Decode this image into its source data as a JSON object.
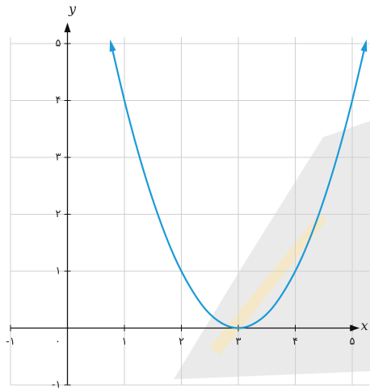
{
  "chart_data": {
    "type": "line",
    "x_label": "x",
    "y_label": "y",
    "x": [
      0.76,
      1.04,
      1.32,
      1.6,
      1.88,
      2.16,
      2.44,
      2.72,
      3.0,
      3.28,
      3.56,
      3.84,
      4.12,
      4.4,
      4.68,
      4.96,
      5.24
    ],
    "series": [
      {
        "color": "#1c9ad6",
        "values": [
          5.02,
          3.84,
          2.82,
          1.96,
          1.25,
          0.71,
          0.31,
          0.08,
          0,
          0.08,
          0.31,
          0.71,
          1.25,
          1.96,
          2.82,
          3.84,
          5.02
        ]
      }
    ],
    "xlim": [
      -1.0,
      5.3
    ],
    "ylim": [
      -1.0,
      5.4
    ],
    "xticks": [
      {
        "value": -1,
        "label": "-۱"
      },
      {
        "value": 0,
        "label": "۰"
      },
      {
        "value": 1,
        "label": "۱"
      },
      {
        "value": 2,
        "label": "۲"
      },
      {
        "value": 3,
        "label": "۳"
      },
      {
        "value": 4,
        "label": "۴"
      },
      {
        "value": 5,
        "label": "۵"
      }
    ],
    "yticks": [
      {
        "value": -1,
        "label": "-۱"
      },
      {
        "value": 1,
        "label": "۱"
      },
      {
        "value": 2,
        "label": "۲"
      },
      {
        "value": 3,
        "label": "۳"
      },
      {
        "value": 4,
        "label": "۴"
      },
      {
        "value": 5,
        "label": "۵"
      }
    ],
    "grid": true
  }
}
